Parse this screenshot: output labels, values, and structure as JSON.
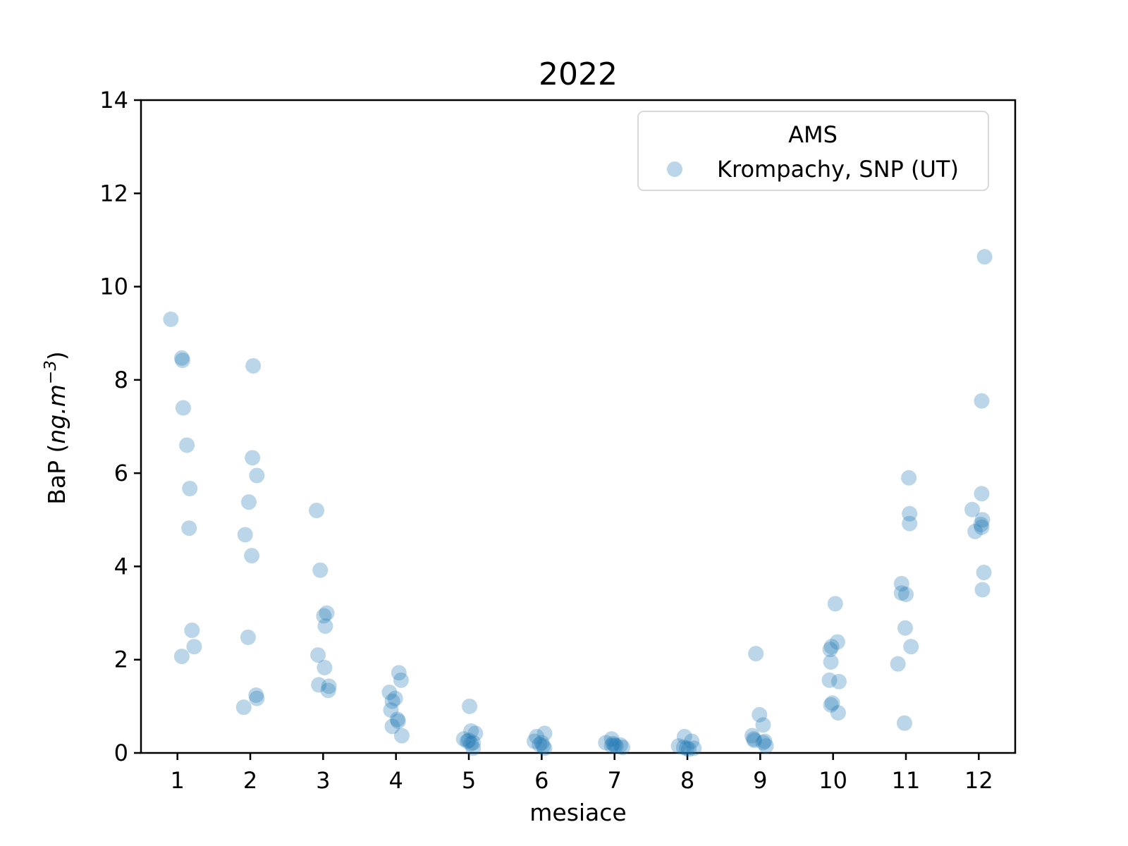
{
  "figure": {
    "title": "2022",
    "background": "#ffffff"
  },
  "legend": {
    "title": "AMS",
    "entries": [
      {
        "label": "Krompachy, SNP (UT)",
        "marker_color": "#1f77b4",
        "marker_alpha": 0.3
      }
    ],
    "position": "upper right"
  },
  "axis": {
    "xlabel": "mesiace",
    "ylabel": "BaP  (ng.m−3)",
    "ylabel_parts": {
      "prefix": "BaP  (",
      "italic": "ng.m",
      "sup": "−3",
      "suffix": ")"
    }
  },
  "chart_data": {
    "type": "scatter",
    "title": "2022",
    "xlabel": "mesiace",
    "ylabel": "BaP (ng.m^-3)",
    "grid": false,
    "legend_position": "upper right",
    "xlim": [
      0.5,
      12.5
    ],
    "ylim": [
      0,
      14
    ],
    "x_ticks": [
      1,
      2,
      3,
      4,
      5,
      6,
      7,
      8,
      9,
      10,
      11,
      12
    ],
    "y_ticks": [
      0,
      2,
      4,
      6,
      8,
      10,
      12,
      14
    ],
    "point_color": "#1f77b4",
    "point_alpha": 0.3,
    "point_radius": 11,
    "series": [
      {
        "name": "Krompachy, SNP (UT)",
        "points": [
          [
            0.91,
            9.3
          ],
          [
            1.06,
            8.47
          ],
          [
            1.07,
            8.42
          ],
          [
            1.08,
            7.4
          ],
          [
            1.13,
            6.6
          ],
          [
            1.17,
            5.67
          ],
          [
            1.16,
            4.82
          ],
          [
            1.2,
            2.63
          ],
          [
            1.23,
            2.28
          ],
          [
            1.06,
            2.07
          ],
          [
            2.04,
            8.3
          ],
          [
            2.03,
            6.33
          ],
          [
            2.09,
            5.95
          ],
          [
            1.98,
            5.38
          ],
          [
            1.93,
            4.68
          ],
          [
            2.02,
            4.23
          ],
          [
            1.97,
            2.48
          ],
          [
            2.08,
            1.24
          ],
          [
            2.09,
            1.17
          ],
          [
            1.91,
            0.98
          ],
          [
            2.91,
            5.2
          ],
          [
            2.96,
            3.92
          ],
          [
            3.05,
            3.0
          ],
          [
            3.01,
            2.94
          ],
          [
            3.03,
            2.72
          ],
          [
            2.93,
            2.1
          ],
          [
            3.02,
            1.83
          ],
          [
            2.94,
            1.46
          ],
          [
            3.08,
            1.43
          ],
          [
            3.07,
            1.34
          ],
          [
            4.04,
            1.72
          ],
          [
            4.07,
            1.56
          ],
          [
            3.91,
            1.3
          ],
          [
            3.99,
            1.17
          ],
          [
            3.95,
            1.11
          ],
          [
            3.93,
            0.92
          ],
          [
            4.02,
            0.72
          ],
          [
            4.03,
            0.68
          ],
          [
            3.95,
            0.57
          ],
          [
            4.08,
            0.37
          ],
          [
            5.01,
            1.0
          ],
          [
            5.03,
            0.47
          ],
          [
            5.09,
            0.42
          ],
          [
            4.93,
            0.3
          ],
          [
            5.0,
            0.27
          ],
          [
            4.98,
            0.25
          ],
          [
            5.06,
            0.22
          ],
          [
            5.03,
            0.2
          ],
          [
            5.06,
            0.1
          ],
          [
            6.04,
            0.42
          ],
          [
            5.93,
            0.35
          ],
          [
            5.9,
            0.25
          ],
          [
            6.0,
            0.22
          ],
          [
            5.97,
            0.18
          ],
          [
            6.02,
            0.15
          ],
          [
            6.04,
            0.1
          ],
          [
            6.96,
            0.3
          ],
          [
            6.88,
            0.22
          ],
          [
            6.98,
            0.2
          ],
          [
            7.0,
            0.17
          ],
          [
            6.96,
            0.16
          ],
          [
            7.02,
            0.15
          ],
          [
            7.08,
            0.17
          ],
          [
            7.11,
            0.12
          ],
          [
            7.96,
            0.35
          ],
          [
            8.06,
            0.25
          ],
          [
            7.88,
            0.15
          ],
          [
            7.95,
            0.12
          ],
          [
            7.99,
            0.1
          ],
          [
            8.09,
            0.1
          ],
          [
            8.02,
            0.08
          ],
          [
            8.94,
            2.13
          ],
          [
            8.99,
            0.82
          ],
          [
            9.04,
            0.6
          ],
          [
            8.89,
            0.37
          ],
          [
            8.91,
            0.3
          ],
          [
            8.92,
            0.27
          ],
          [
            9.06,
            0.25
          ],
          [
            9.04,
            0.22
          ],
          [
            9.08,
            0.15
          ],
          [
            10.03,
            3.2
          ],
          [
            10.06,
            2.38
          ],
          [
            9.98,
            2.28
          ],
          [
            9.96,
            2.22
          ],
          [
            9.97,
            1.95
          ],
          [
            9.95,
            1.56
          ],
          [
            10.08,
            1.53
          ],
          [
            9.99,
            1.07
          ],
          [
            9.97,
            1.03
          ],
          [
            10.07,
            0.86
          ],
          [
            11.04,
            5.9
          ],
          [
            11.05,
            5.13
          ],
          [
            11.05,
            4.92
          ],
          [
            10.94,
            3.63
          ],
          [
            10.94,
            3.43
          ],
          [
            11.0,
            3.4
          ],
          [
            10.99,
            2.68
          ],
          [
            11.07,
            2.28
          ],
          [
            10.89,
            1.91
          ],
          [
            10.98,
            0.64
          ],
          [
            12.08,
            10.64
          ],
          [
            12.04,
            7.55
          ],
          [
            12.04,
            5.56
          ],
          [
            11.91,
            5.22
          ],
          [
            12.05,
            5.0
          ],
          [
            12.03,
            4.9
          ],
          [
            12.04,
            4.84
          ],
          [
            11.95,
            4.75
          ],
          [
            12.07,
            3.87
          ],
          [
            12.05,
            3.5
          ]
        ]
      }
    ]
  }
}
